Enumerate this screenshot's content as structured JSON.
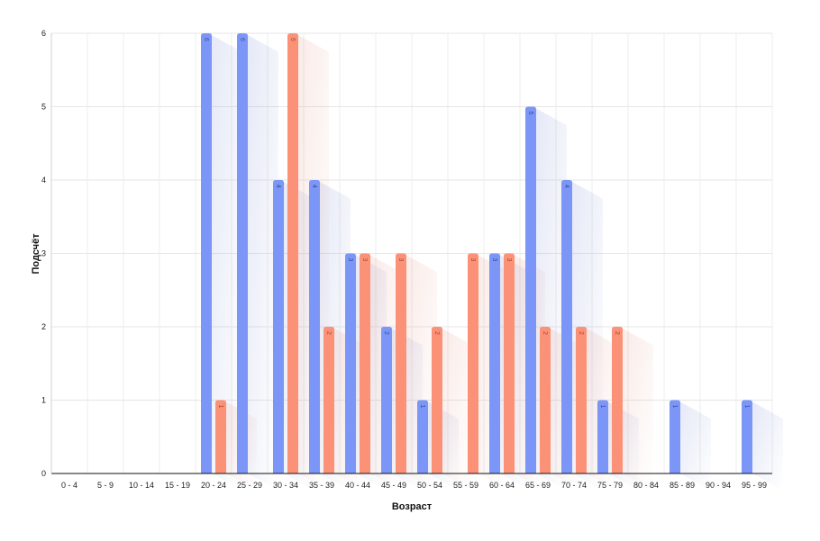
{
  "chart_data": {
    "type": "bar",
    "xlabel": "Возраст",
    "ylabel": "Подсчёт",
    "categories": [
      "0 - 4",
      "5 - 9",
      "10 - 14",
      "15 - 19",
      "20 - 24",
      "25 - 29",
      "30 - 34",
      "35 - 39",
      "40 - 44",
      "45 - 49",
      "50 - 54",
      "55 - 59",
      "60 - 64",
      "65 - 69",
      "70 - 74",
      "75 - 79",
      "80 - 84",
      "85 - 89",
      "90 - 94",
      "95 - 99"
    ],
    "series": [
      {
        "color": "#7b96f7",
        "label_color": "#3a4c9a",
        "values": [
          0,
          0,
          0,
          0,
          6,
          6,
          4,
          4,
          3,
          2,
          1,
          0,
          3,
          5,
          4,
          1,
          0,
          1,
          0,
          1
        ]
      },
      {
        "color": "#fb9277",
        "label_color": "#a14a31",
        "values": [
          0,
          0,
          0,
          0,
          1,
          0,
          6,
          2,
          3,
          3,
          2,
          3,
          3,
          2,
          2,
          2,
          0,
          0,
          0,
          0
        ]
      }
    ],
    "ylim": [
      0,
      6
    ],
    "yticks": [
      "0",
      "1",
      "2",
      "3",
      "4",
      "5",
      "6"
    ],
    "grid": true,
    "legend": "none"
  }
}
